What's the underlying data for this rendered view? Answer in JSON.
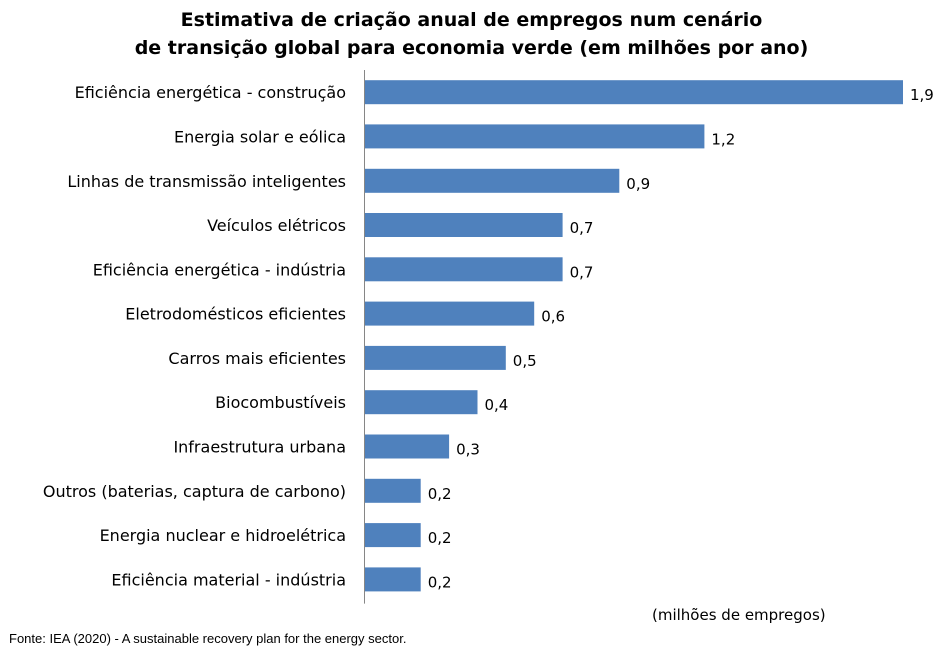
{
  "chart_data": {
    "type": "bar",
    "orientation": "horizontal",
    "title_lines": [
      "Estimativa de criação anual de empregos num cenário",
      "de transição global para economia verde (em milhões por ano)"
    ],
    "categories": [
      "Eficiência energética - construção",
      "Energia solar e eólica",
      "Linhas de transmissão inteligentes",
      "Veículos elétricos",
      "Eficiência energética - indústria",
      "Eletrodomésticos eficientes",
      "Carros mais eficientes",
      "Biocombustíveis",
      "Infraestrutura urbana",
      "Outros (baterias, captura de carbono)",
      "Energia nuclear e hidroelétrica",
      "Eficiência material - indústria"
    ],
    "values": [
      1.9,
      1.2,
      0.9,
      0.7,
      0.7,
      0.6,
      0.5,
      0.4,
      0.3,
      0.2,
      0.2,
      0.2
    ],
    "data_labels": [
      "1,9",
      "1,2",
      "0,9",
      "0,7",
      "0,7",
      "0,6",
      "0,5",
      "0,4",
      "0,3",
      "0,2",
      "0,2",
      "0,2"
    ],
    "xlabel": "(milhões de empregos)",
    "xlim": [
      0,
      1.9
    ],
    "grid": false,
    "legend": "none",
    "bar_color": "#4F81BD",
    "axis_color": "#868686"
  },
  "footer": {
    "source": "Fonte: IEA (2020) - A sustainable recovery plan for the energy sector."
  }
}
